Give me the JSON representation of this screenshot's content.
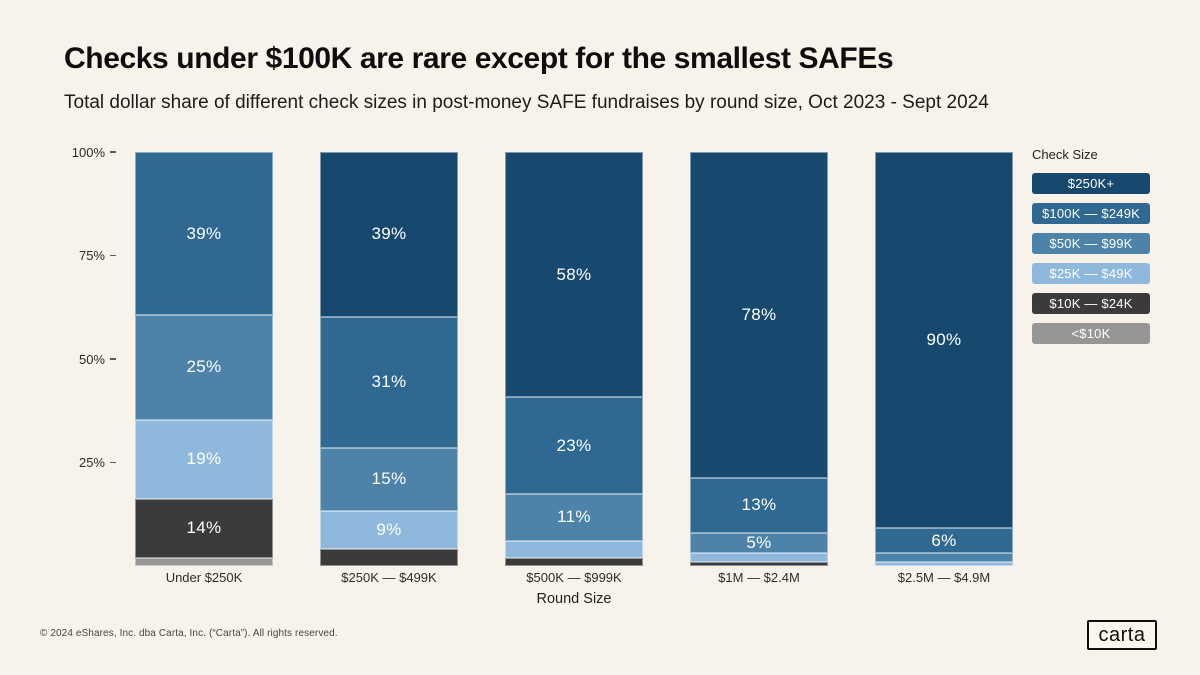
{
  "header": {
    "title": "Checks under $100K are rare except for the smallest SAFEs",
    "subtitle": "Total dollar share of different check sizes in post-money SAFE fundraises by round size, Oct 2023 - Sept 2024"
  },
  "chart_data": {
    "type": "bar",
    "stacked": true,
    "orientation": "vertical",
    "unit": "percent",
    "title": "Checks under $100K are rare except for the smallest SAFEs",
    "xlabel": "Round Size",
    "ylabel": "",
    "ylim": [
      0,
      100
    ],
    "grid": false,
    "yticks": [
      {
        "label": "100%",
        "value": 100
      },
      {
        "label": "75%",
        "value": 75
      },
      {
        "label": "50%",
        "value": 50
      },
      {
        "label": "25%",
        "value": 25
      }
    ],
    "categories": [
      "Under $250K",
      "$250K — $499K",
      "$500K — $999K",
      "$1M — $2.4M",
      "$2.5M — $4.9M"
    ],
    "legend": {
      "title": "Check Size",
      "position": "right"
    },
    "series": [
      {
        "name": "$250K+",
        "color": "#17486e",
        "values": [
          0,
          39,
          58,
          78,
          90
        ]
      },
      {
        "name": "$100K — $249K",
        "color": "#2f6890",
        "values": [
          39,
          31,
          23,
          13,
          6
        ]
      },
      {
        "name": "$50K — $99K",
        "color": "#4d83a8",
        "values": [
          25,
          15,
          11,
          5,
          2
        ]
      },
      {
        "name": "$25K — $49K",
        "color": "#8fb9dc",
        "values": [
          19,
          9,
          4,
          2,
          1
        ]
      },
      {
        "name": "$10K — $24K",
        "color": "#3b3b3b",
        "values": [
          14,
          4,
          2,
          1,
          0
        ]
      },
      {
        "name": "<$10K",
        "color": "#969696",
        "values": [
          2,
          0,
          0,
          0,
          0
        ]
      }
    ],
    "data_label_suffix": "%",
    "data_label_min_value": 5
  },
  "footer": {
    "copyright": "© 2024 eShares, Inc. dba Carta, Inc. (“Carta”). All rights reserved.",
    "logo_text": "carta"
  },
  "colors": {
    "background": "#f8f3ea",
    "title_text": "#0e0e0e",
    "axis_text": "#2b2b2b",
    "segment_label_text": "#ffffff"
  }
}
